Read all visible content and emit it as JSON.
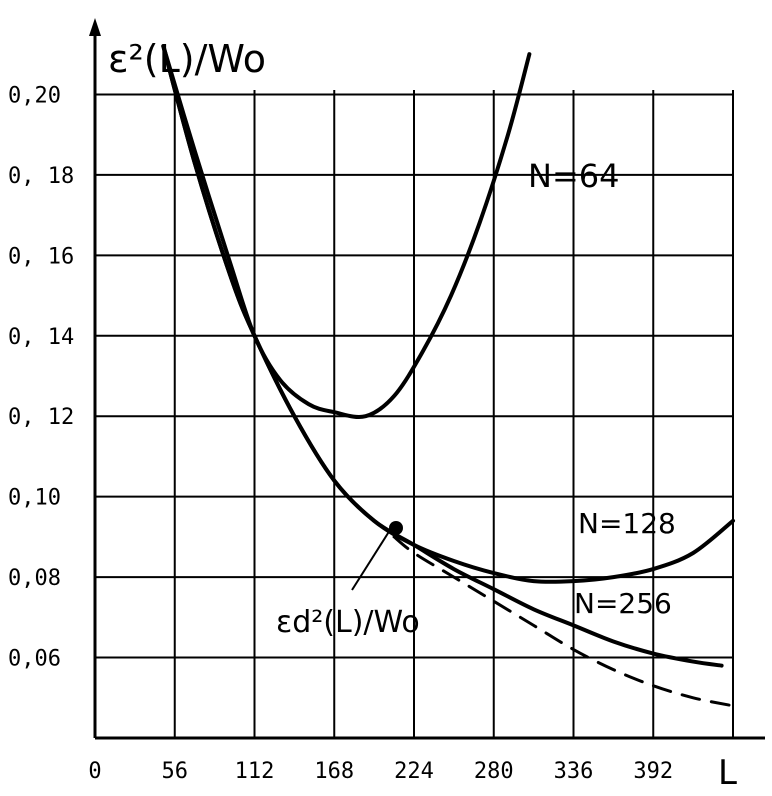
{
  "chart_data": {
    "type": "line",
    "ylabel": "ε²(L)/Wo",
    "xlabel": "L",
    "x_ticks": [
      "0",
      "56",
      "112",
      "168",
      "224",
      "280",
      "336",
      "392"
    ],
    "y_ticks": [
      "0,20",
      "0, 18",
      "0, 16",
      "0, 14",
      "0, 12",
      "0,10",
      "0,08",
      "0,06"
    ],
    "xlim": [
      0,
      448
    ],
    "ylim": [
      0.04,
      0.22
    ],
    "grid": true,
    "series": [
      {
        "name": "N=64",
        "style": "solid",
        "x": [
          48,
          70,
          95,
          112,
          130,
          150,
          168,
          190,
          210,
          230,
          250,
          270,
          290,
          305
        ],
        "y": [
          0.212,
          0.186,
          0.158,
          0.14,
          0.129,
          0.123,
          0.121,
          0.12,
          0.125,
          0.136,
          0.15,
          0.168,
          0.19,
          0.21
        ]
      },
      {
        "name": "N=128",
        "style": "solid",
        "x": [
          48,
          70,
          95,
          112,
          140,
          168,
          196,
          224,
          252,
          280,
          308,
          336,
          364,
          392,
          420,
          448
        ],
        "y": [
          0.212,
          0.183,
          0.155,
          0.14,
          0.12,
          0.104,
          0.094,
          0.088,
          0.084,
          0.081,
          0.079,
          0.079,
          0.08,
          0.082,
          0.086,
          0.094
        ]
      },
      {
        "name": "N=256",
        "style": "solid",
        "x": [
          48,
          70,
          95,
          112,
          140,
          168,
          196,
          224,
          252,
          280,
          308,
          336,
          364,
          392,
          420,
          440
        ],
        "y": [
          0.212,
          0.183,
          0.155,
          0.14,
          0.12,
          0.104,
          0.094,
          0.088,
          0.082,
          0.077,
          0.072,
          0.068,
          0.064,
          0.061,
          0.059,
          0.058
        ]
      },
      {
        "name": "εd²(L)/Wo",
        "style": "dashed",
        "x": [
          210,
          224,
          252,
          280,
          308,
          336,
          364,
          392,
          420,
          448
        ],
        "y": [
          0.09,
          0.086,
          0.08,
          0.074,
          0.068,
          0.062,
          0.057,
          0.053,
          0.05,
          0.048
        ]
      }
    ],
    "annotations": [
      {
        "text": "N=64",
        "series": "N=64"
      },
      {
        "text": "N=128",
        "series": "N=128"
      },
      {
        "text": "N=256",
        "series": "N=256"
      }
    ]
  },
  "labels": {
    "y_title_main": "ε²(L)/Wo",
    "x_title": "L",
    "n64": "N=64",
    "n128": "N=128",
    "n256": "N=256",
    "eps_d": "εd²(L)/Wo"
  }
}
